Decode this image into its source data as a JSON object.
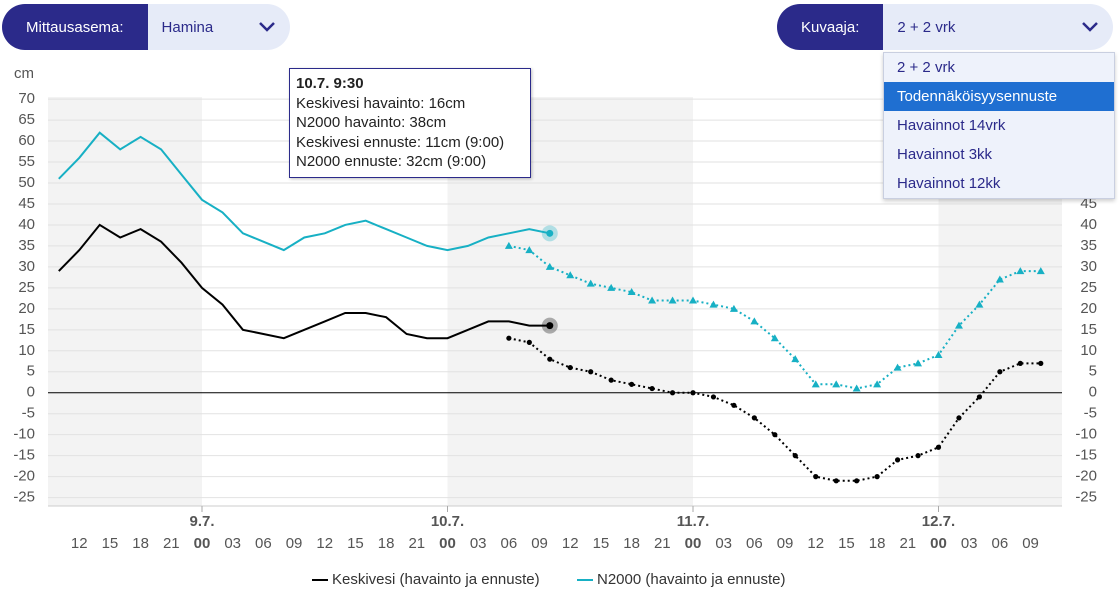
{
  "ui": {
    "station_label": "Mittausasema:",
    "station_value": "Hamina",
    "graph_label": "Kuvaaja:",
    "graph_value": "2 + 2 vrk",
    "options": [
      "2 + 2 vrk",
      "Todennäköisyysennuste",
      "Havainnot 14vrk",
      "Havainnot 3kk",
      "Havainnot 12kk"
    ],
    "selected_option": 1
  },
  "tooltip": {
    "title": "10.7. 9:30",
    "lines": [
      "Keskivesi havainto: 16cm",
      "N2000 havainto: 38cm",
      "Keskivesi ennuste: 11cm (9:00)",
      "N2000 ennuste: 32cm (9:00)"
    ]
  },
  "chart_data": {
    "type": "line",
    "y_label": "cm",
    "x": [
      "8.7. 10:00",
      "8.7. 12:00",
      "8.7. 14:00",
      "8.7. 16:00",
      "8.7. 18:00",
      "8.7. 20:00",
      "8.7. 22:00",
      "9.7. 00:00",
      "9.7. 02:00",
      "9.7. 04:00",
      "9.7. 06:00",
      "9.7. 08:00",
      "9.7. 10:00",
      "9.7. 12:00",
      "9.7. 14:00",
      "9.7. 16:00",
      "9.7. 18:00",
      "9.7. 20:00",
      "9.7. 22:00",
      "10.7. 00:00",
      "10.7. 02:00",
      "10.7. 04:00",
      "10.7. 06:00",
      "10.7. 08:00",
      "10.7. 10:00",
      "10.7. 12:00",
      "10.7. 14:00",
      "10.7. 16:00",
      "10.7. 18:00",
      "10.7. 20:00",
      "10.7. 22:00",
      "11.7. 00:00",
      "11.7. 02:00",
      "11.7. 04:00",
      "11.7. 06:00",
      "11.7. 08:00",
      "11.7. 10:00",
      "11.7. 12:00",
      "11.7. 14:00",
      "11.7. 16:00",
      "11.7. 18:00",
      "11.7. 20:00",
      "11.7. 22:00",
      "12.7. 00:00",
      "12.7. 02:00",
      "12.7. 04:00",
      "12.7. 06:00",
      "12.7. 08:00",
      "12.7. 10:00"
    ],
    "series": [
      {
        "name": "Keskivesi (havainto ja ennuste)",
        "color": "#000000",
        "values": [
          29,
          34,
          40,
          37,
          39,
          36,
          31,
          25,
          21,
          15,
          14,
          13,
          15,
          17,
          19,
          19,
          18,
          14,
          13,
          13,
          15,
          17,
          17,
          16,
          16,
          null,
          null,
          null,
          null,
          null,
          null,
          null,
          null,
          null,
          null,
          null,
          null,
          null,
          null,
          null,
          null,
          null,
          null,
          null,
          null,
          null,
          null,
          null,
          null
        ],
        "forecast": [
          null,
          null,
          null,
          null,
          null,
          null,
          null,
          null,
          null,
          null,
          null,
          null,
          null,
          null,
          null,
          null,
          null,
          null,
          null,
          null,
          null,
          null,
          13,
          12,
          8,
          6,
          5,
          3,
          2,
          1,
          0,
          0,
          -1,
          -3,
          -6,
          -10,
          -15,
          -20,
          -21,
          -21,
          -20,
          -16,
          -15,
          -13,
          -6,
          -1,
          5,
          7,
          7
        ]
      },
      {
        "name": "N2000 (havainto ja ennuste)",
        "color": "#17b0c4",
        "values": [
          51,
          56,
          62,
          58,
          61,
          58,
          52,
          46,
          43,
          38,
          36,
          34,
          37,
          38,
          40,
          41,
          39,
          37,
          35,
          34,
          35,
          37,
          38,
          39,
          38,
          null,
          null,
          null,
          null,
          null,
          null,
          null,
          null,
          null,
          null,
          null,
          null,
          null,
          null,
          null,
          null,
          null,
          null,
          null,
          null,
          null,
          null,
          null,
          null
        ],
        "forecast": [
          null,
          null,
          null,
          null,
          null,
          null,
          null,
          null,
          null,
          null,
          null,
          null,
          null,
          null,
          null,
          null,
          null,
          null,
          null,
          null,
          null,
          null,
          35,
          34,
          30,
          28,
          26,
          25,
          24,
          22,
          22,
          22,
          21,
          20,
          17,
          13,
          8,
          2,
          2,
          1,
          2,
          6,
          7,
          9,
          16,
          21,
          27,
          29,
          29
        ]
      }
    ],
    "ylim": [
      -27,
      70.5
    ],
    "yticks": [
      -25,
      -20,
      -15,
      -10,
      -5,
      0,
      5,
      10,
      15,
      20,
      25,
      30,
      35,
      40,
      45,
      50,
      55,
      60,
      65,
      70
    ],
    "day_labels": [
      {
        "value": "9.7. 00:00",
        "label": "9.7."
      },
      {
        "value": "10.7. 00:00",
        "label": "10.7."
      },
      {
        "value": "11.7. 00:00",
        "label": "11.7."
      },
      {
        "value": "12.7. 00:00",
        "label": "12.7."
      }
    ],
    "xticks": [
      {
        "value": "8.7. 12:00",
        "label": "12"
      },
      {
        "value": "8.7. 15:00",
        "label": "15"
      },
      {
        "value": "8.7. 18:00",
        "label": "18"
      },
      {
        "value": "8.7. 21:00",
        "label": "21"
      },
      {
        "value": "9.7. 00:00",
        "label": "00"
      },
      {
        "value": "9.7. 03:00",
        "label": "03"
      },
      {
        "value": "9.7. 06:00",
        "label": "06"
      },
      {
        "value": "9.7. 09:00",
        "label": "09"
      },
      {
        "value": "9.7. 12:00",
        "label": "12"
      },
      {
        "value": "9.7. 15:00",
        "label": "15"
      },
      {
        "value": "9.7. 18:00",
        "label": "18"
      },
      {
        "value": "9.7. 21:00",
        "label": "21"
      },
      {
        "value": "10.7. 00:00",
        "label": "00"
      },
      {
        "value": "10.7. 03:00",
        "label": "03"
      },
      {
        "value": "10.7. 06:00",
        "label": "06"
      },
      {
        "value": "10.7. 09:00",
        "label": "09"
      },
      {
        "value": "10.7. 12:00",
        "label": "12"
      },
      {
        "value": "10.7. 15:00",
        "label": "15"
      },
      {
        "value": "10.7. 18:00",
        "label": "18"
      },
      {
        "value": "10.7. 21:00",
        "label": "21"
      },
      {
        "value": "11.7. 00:00",
        "label": "00"
      },
      {
        "value": "11.7. 03:00",
        "label": "03"
      },
      {
        "value": "11.7. 06:00",
        "label": "06"
      },
      {
        "value": "11.7. 09:00",
        "label": "09"
      },
      {
        "value": "11.7. 12:00",
        "label": "12"
      },
      {
        "value": "11.7. 15:00",
        "label": "15"
      },
      {
        "value": "11.7. 18:00",
        "label": "18"
      },
      {
        "value": "11.7. 21:00",
        "label": "21"
      },
      {
        "value": "12.7. 00:00",
        "label": "00"
      },
      {
        "value": "12.7. 03:00",
        "label": "03"
      },
      {
        "value": "12.7. 06:00",
        "label": "06"
      },
      {
        "value": "12.7. 09:00",
        "label": "09"
      }
    ],
    "grid": true
  }
}
